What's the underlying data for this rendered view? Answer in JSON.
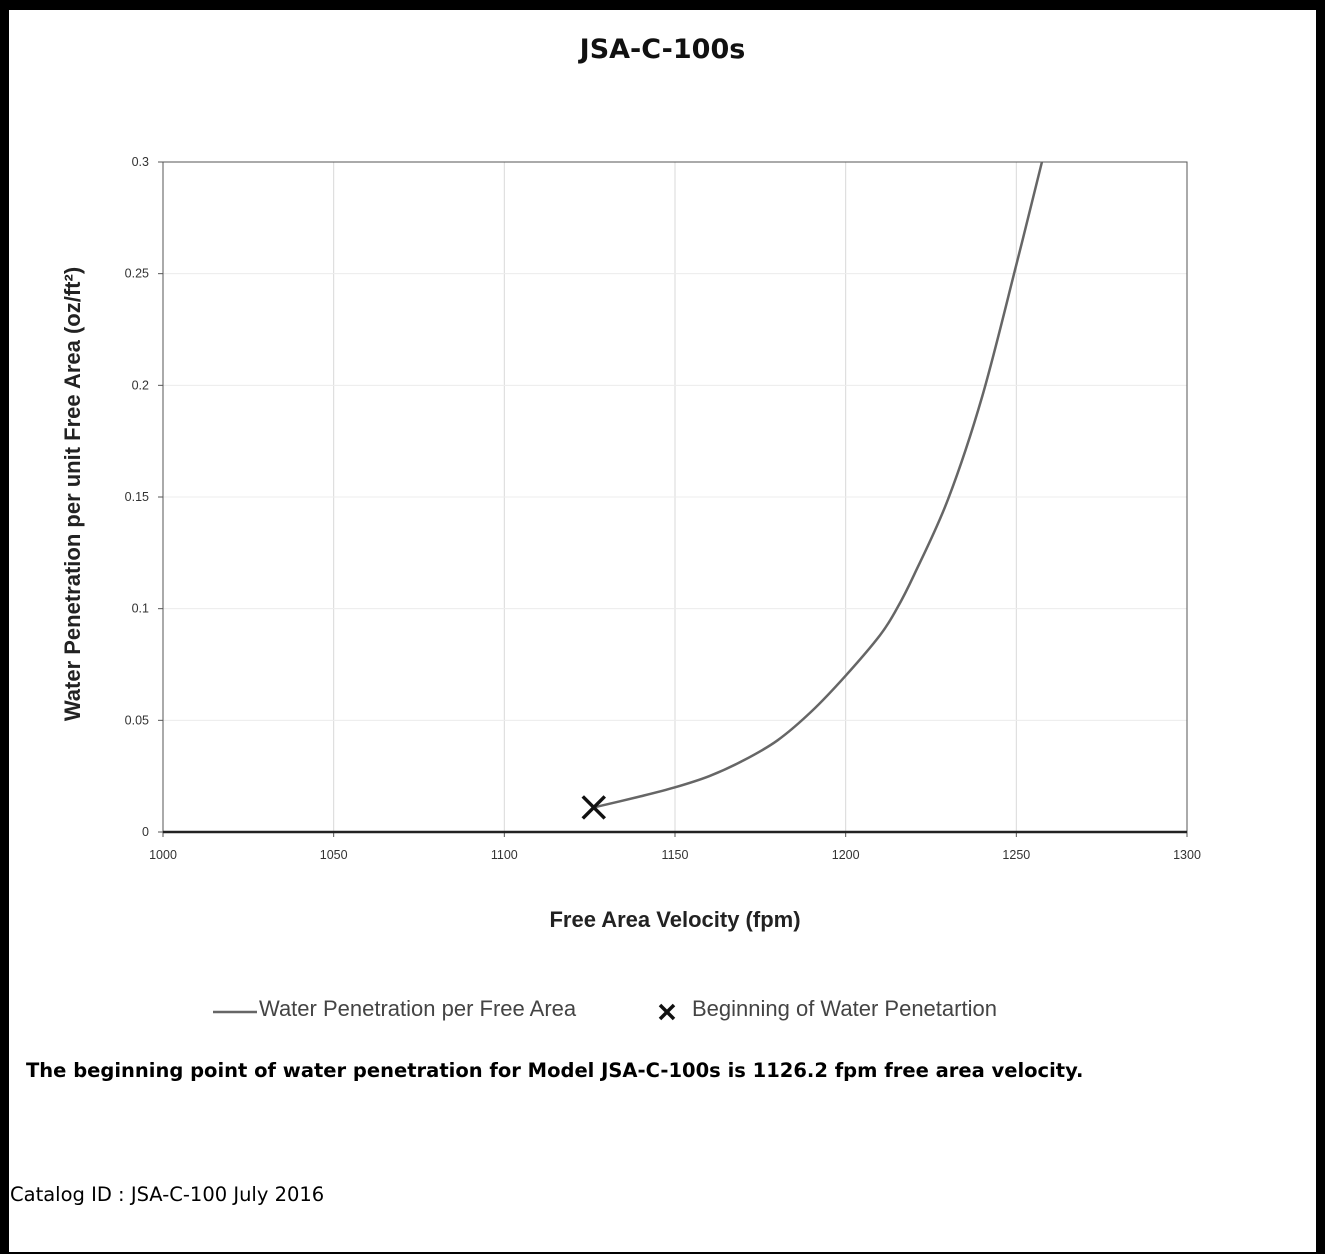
{
  "chart_data": {
    "type": "line",
    "title": "JSA-C-100s",
    "xlabel": "Free Area Velocity (fpm)",
    "ylabel": "Water Penetration per unit Free Area (oz/ft²)",
    "xlim": [
      1000,
      1300
    ],
    "ylim": [
      0,
      0.3
    ],
    "x_ticks": [
      "1000",
      "1050",
      "1100",
      "1150",
      "1200",
      "1250",
      "1300"
    ],
    "y_ticks": [
      "0",
      "0.05",
      "0.1",
      "0.15",
      "0.2",
      "0.25",
      "0.3"
    ],
    "grid": true,
    "legend_position": "bottom",
    "series": [
      {
        "name": "Water Penetration per Free Area",
        "type": "line",
        "color": "#666666",
        "x": [
          1126.2,
          1140,
          1150,
          1160,
          1170,
          1180,
          1190,
          1200,
          1210,
          1215,
          1220,
          1230,
          1240,
          1250,
          1257.5
        ],
        "y": [
          0.011,
          0.016,
          0.02,
          0.025,
          0.032,
          0.041,
          0.054,
          0.07,
          0.088,
          0.1,
          0.115,
          0.149,
          0.195,
          0.254,
          0.3
        ]
      },
      {
        "name": "Beginning of Water Penetartion",
        "type": "scatter",
        "marker": "x",
        "color": "#111111",
        "x": [
          1126.2
        ],
        "y": [
          0.011
        ]
      }
    ]
  },
  "caption": "The beginning point of water penetration for Model JSA-C-100s is 1126.2 fpm free area velocity.",
  "catalog": "Catalog ID : JSA-C-100 July 2016"
}
